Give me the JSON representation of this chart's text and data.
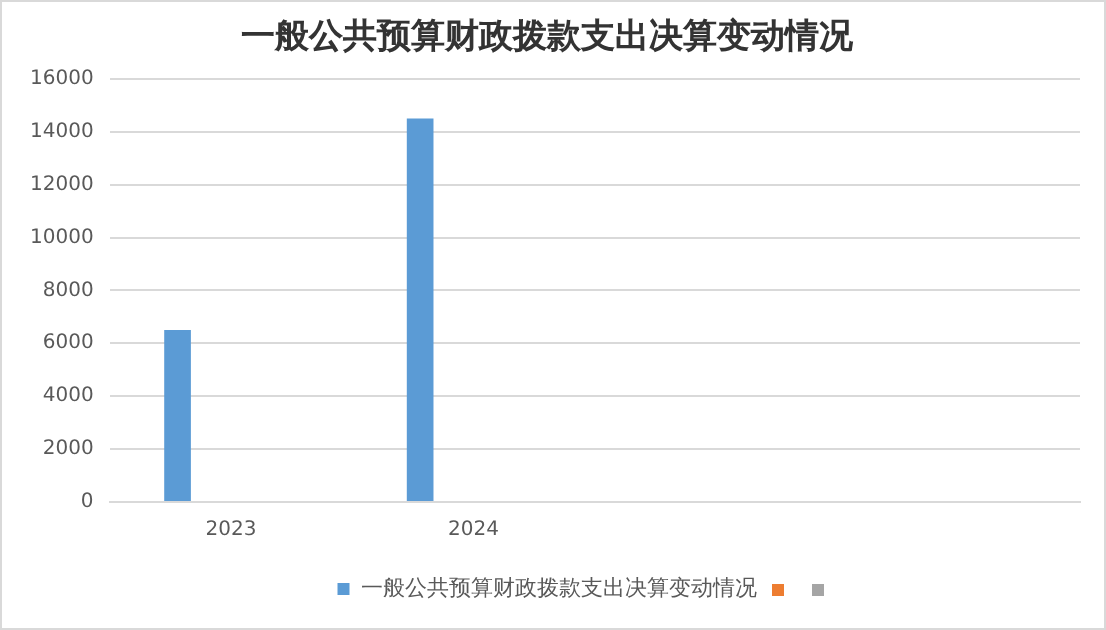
{
  "chart_data": {
    "type": "bar",
    "title": "一般公共预算财政拨款支出决算变动情况",
    "categories": [
      "2023",
      "2024",
      null,
      null
    ],
    "series": [
      {
        "name": "一般公共预算财政拨款支出决算变动情况",
        "color": "#5b9bd5",
        "values": [
          6500,
          14500,
          null,
          null
        ]
      },
      {
        "color": "#ed7d31",
        "values": [
          null,
          null,
          null,
          null
        ]
      },
      {
        "color": "#a5a5a5",
        "values": [
          null,
          null,
          null,
          null
        ]
      }
    ],
    "ylim": [
      0,
      16000
    ],
    "yticks": [
      0,
      2000,
      4000,
      6000,
      8000,
      10000,
      12000,
      14000,
      16000
    ],
    "grid": "y",
    "legend": "bottom"
  }
}
